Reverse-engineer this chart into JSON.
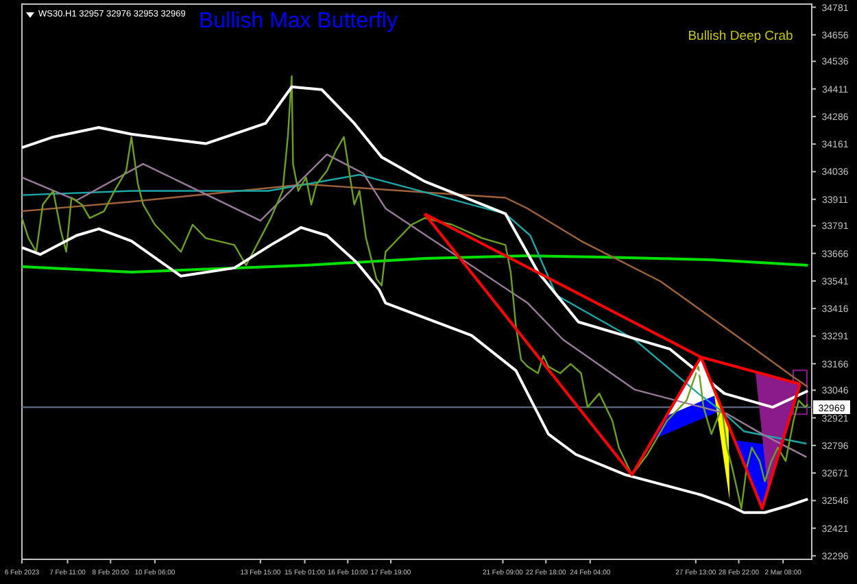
{
  "chart_data": {
    "type": "line",
    "title": "Bullish Max Butterfly",
    "annotations": [
      "WS30.H1  32957 32976 32953 32969",
      "Bullish Deep Crab"
    ],
    "xlim": [
      "2023-02-06T00:00",
      "2023-03-03T06:00"
    ],
    "xticks": [
      {
        "value": "2023-02-06T00:00",
        "label": "6 Feb 2023"
      },
      {
        "value": "2023-02-07T11:00",
        "label": "7 Feb 11:00"
      },
      {
        "value": "2023-02-08T20:00",
        "label": "8 Feb 20:00"
      },
      {
        "value": "2023-02-10T06:00",
        "label": "10 Feb 06:00"
      },
      {
        "value": "2023-02-13T15:00",
        "label": "13 Feb 15:00"
      },
      {
        "value": "2023-02-15T01:00",
        "label": "15 Feb 01:00"
      },
      {
        "value": "2023-02-16T10:00",
        "label": "16 Feb 10:00"
      },
      {
        "value": "2023-02-17T19:00",
        "label": "17 Feb 19:00"
      },
      {
        "value": "2023-02-21T09:00",
        "label": "21 Feb 09:00"
      },
      {
        "value": "2023-02-22T18:00",
        "label": "22 Feb 18:00"
      },
      {
        "value": "2023-02-24T04:00",
        "label": "24 Feb 04:00"
      },
      {
        "value": "2023-02-27T13:00",
        "label": "27 Feb 13:00"
      },
      {
        "value": "2023-02-28T22:00",
        "label": "28 Feb 22:00"
      },
      {
        "value": "2023-03-02T08:00",
        "label": "2 Mar 08:00"
      }
    ],
    "ylim": [
      32280,
      34795
    ],
    "yticks": [
      34781,
      34656,
      34536,
      34411,
      34286,
      34161,
      34036,
      33911,
      33791,
      33666,
      33541,
      33416,
      33291,
      33166,
      33046,
      32921,
      32796,
      32671,
      32546,
      32421,
      32296
    ],
    "grid": false,
    "marker": "none",
    "line_style": "solid",
    "ref_lines": [
      {
        "axis": "y",
        "value": 32969,
        "label": "32969",
        "color": "#5a6878"
      }
    ],
    "series": [
      {
        "color": "#00e000",
        "x": [
          "2023-02-06T00:00",
          "2023-02-09T12:00",
          "2023-02-15T02:00",
          "2023-02-18T21:00",
          "2023-02-22T04:00",
          "2023-02-24T11:00",
          "2023-02-28T01:00",
          "2023-03-03T03:00"
        ],
        "values": [
          33606,
          33581,
          33612,
          33643,
          33655,
          33649,
          33637,
          33612
        ]
      },
      {
        "color": "#a0623a",
        "x": [
          "2023-02-06T00:00",
          "2023-02-09T12:00",
          "2023-02-15T02:00",
          "2023-02-18T05:00",
          "2023-02-21T11:00",
          "2023-02-22T04:00",
          "2023-02-23T21:00",
          "2023-02-26T10:00",
          "2023-02-28T20:00",
          "2023-03-02T15:00",
          "2023-03-03T03:00"
        ],
        "values": [
          33857,
          33900,
          33979,
          33949,
          33918,
          33869,
          33722,
          33539,
          33294,
          33110,
          33061
        ]
      },
      {
        "color": "#1aa8a8",
        "x": [
          "2023-02-06T00:00",
          "2023-02-09T12:00",
          "2023-02-13T21:00",
          "2023-02-16T19:00",
          "2023-02-21T11:00",
          "2023-02-22T06:00",
          "2023-02-23T02:00",
          "2023-02-25T14:00",
          "2023-02-27T15:00",
          "2023-02-28T09:00",
          "2023-03-01T02:00",
          "2023-03-03T02:00"
        ],
        "values": [
          33930,
          33949,
          33949,
          34022,
          33845,
          33747,
          33477,
          33276,
          33031,
          32951,
          32860,
          32804
        ]
      },
      {
        "color": "#9a7a9a",
        "x": [
          "2023-02-06T00:00",
          "2023-02-07T18:00",
          "2023-02-09T21:00",
          "2023-02-13T15:00",
          "2023-02-15T18:00",
          "2023-02-16T22:00",
          "2023-02-17T15:00",
          "2023-02-22T04:00",
          "2023-02-23T07:00",
          "2023-02-25T14:00",
          "2023-02-28T13:00",
          "2023-03-01T16:00",
          "2023-03-03T02:00"
        ],
        "values": [
          34010,
          33906,
          34071,
          33814,
          34114,
          34028,
          33869,
          33441,
          33276,
          33049,
          32939,
          32847,
          32743
        ]
      },
      {
        "color": "#6aa121",
        "x": [
          "2023-02-06T00:00",
          "2023-02-06T05:00",
          "2023-02-06T11:00",
          "2023-02-06T16:00",
          "2023-02-07T00:00",
          "2023-02-07T06:00",
          "2023-02-07T10:00",
          "2023-02-07T14:00",
          "2023-02-07T22:00",
          "2023-02-08T04:00",
          "2023-02-08T15:00",
          "2023-02-08T23:00",
          "2023-02-09T08:00",
          "2023-02-09T12:00",
          "2023-02-09T17:00",
          "2023-02-09T21:00",
          "2023-02-10T06:00",
          "2023-02-11T02:00",
          "2023-02-11T11:00",
          "2023-02-11T21:00",
          "2023-02-12T19:00",
          "2023-02-13T04:00",
          "2023-02-13T15:00",
          "2023-02-13T23:00",
          "2023-02-14T08:00",
          "2023-02-14T12:00",
          "2023-02-14T15:00",
          "2023-02-14T16:00",
          "2023-02-14T20:00",
          "2023-02-15T02:00",
          "2023-02-15T06:00",
          "2023-02-15T10:00",
          "2023-02-15T18:00",
          "2023-02-16T01:00",
          "2023-02-16T07:00",
          "2023-02-16T11:00",
          "2023-02-16T15:00",
          "2023-02-16T19:00",
          "2023-02-17T00:00",
          "2023-02-17T08:00",
          "2023-02-17T12:00",
          "2023-02-17T15:00",
          "2023-02-18T11:00",
          "2023-02-18T21:00",
          "2023-02-19T18:00",
          "2023-02-20T17:00",
          "2023-02-21T11:00",
          "2023-02-21T15:00",
          "2023-02-21T19:00",
          "2023-02-21T23:00",
          "2023-02-22T04:00",
          "2023-02-22T12:00",
          "2023-02-22T16:00",
          "2023-02-22T20:00",
          "2023-02-23T05:00",
          "2023-02-23T13:00",
          "2023-02-23T21:00",
          "2023-02-24T02:00",
          "2023-02-24T11:00",
          "2023-02-24T21:00",
          "2023-02-25T02:00",
          "2023-02-25T12:00",
          "2023-02-26T00:00",
          "2023-02-26T15:00",
          "2023-02-27T06:00",
          "2023-02-27T15:00",
          "2023-02-27T19:00",
          "2023-02-28T01:00",
          "2023-02-28T05:00",
          "2023-02-28T09:00",
          "2023-02-28T13:00",
          "2023-02-28T17:00",
          "2023-03-01T00:00",
          "2023-03-01T04:00",
          "2023-03-01T08:00",
          "2023-03-01T14:00",
          "2023-03-01T18:00",
          "2023-03-01T23:00",
          "2023-03-02T04:00",
          "2023-03-02T10:00",
          "2023-03-02T16:00",
          "2023-03-02T20:00",
          "2023-03-03T01:00",
          "2023-03-03T03:00"
        ],
        "values": [
          33826,
          33735,
          33673,
          33887,
          33949,
          33765,
          33673,
          33918,
          33887,
          33826,
          33857,
          33949,
          34040,
          34193,
          33979,
          33887,
          33796,
          33673,
          33796,
          33735,
          33704,
          33612,
          33735,
          33826,
          33949,
          34193,
          34469,
          34071,
          33949,
          34010,
          33887,
          33979,
          34040,
          34132,
          34193,
          34040,
          33887,
          33949,
          33735,
          33551,
          33520,
          33673,
          33796,
          33826,
          33796,
          33735,
          33704,
          33581,
          33337,
          33184,
          33153,
          33123,
          33202,
          33153,
          33123,
          33165,
          33123,
          32969,
          33031,
          32908,
          32786,
          32663,
          32755,
          32908,
          33000,
          33153,
          32969,
          32847,
          32908,
          32969,
          32786,
          32694,
          32510,
          32694,
          32786,
          32725,
          32633,
          32725,
          32786,
          32725,
          32908,
          33000,
          32969,
          32982
        ]
      },
      {
        "color": "#ffffff",
        "x": [
          "2023-02-06T00:00",
          "2023-02-07T00:00",
          "2023-02-08T11:00",
          "2023-02-09T12:00",
          "2023-02-11T21:00",
          "2023-02-13T19:00",
          "2023-02-14T15:00",
          "2023-02-15T14:00",
          "2023-02-16T15:00",
          "2023-02-17T12:00",
          "2023-02-18T21:00",
          "2023-02-21T11:00",
          "2023-02-22T12:00",
          "2023-02-23T19:00",
          "2023-02-26T17:00",
          "2023-02-28T11:00",
          "2023-03-02T00:00",
          "2023-03-03T03:00"
        ],
        "values": [
          34145,
          34193,
          34236,
          34206,
          34163,
          34255,
          34420,
          34408,
          34255,
          34102,
          33992,
          33845,
          33581,
          33355,
          33233,
          33031,
          32969,
          33043
        ]
      },
      {
        "color": "#ffffff",
        "x": [
          "2023-02-06T00:00",
          "2023-02-06T14:00",
          "2023-02-07T18:00",
          "2023-02-08T11:00",
          "2023-02-09T12:00",
          "2023-02-11T02:00",
          "2023-02-12T19:00",
          "2023-02-13T23:00",
          "2023-02-14T22:00",
          "2023-02-15T18:00",
          "2023-02-16T17:00",
          "2023-02-17T10:00",
          "2023-02-17T15:00",
          "2023-02-20T09:00",
          "2023-02-21T19:00",
          "2023-02-22T04:00",
          "2023-02-22T20:00",
          "2023-02-23T17:00",
          "2023-02-25T07:00",
          "2023-02-27T17:00",
          "2023-02-28T13:00",
          "2023-03-01T02:00",
          "2023-03-01T18:00",
          "2023-03-02T12:00",
          "2023-03-03T03:00"
        ],
        "values": [
          33692,
          33661,
          33747,
          33777,
          33722,
          33563,
          33600,
          33704,
          33783,
          33747,
          33624,
          33502,
          33441,
          33294,
          33135,
          33031,
          32847,
          32755,
          32663,
          32572,
          32529,
          32492,
          32492,
          32523,
          32553
        ]
      },
      {
        "color": "#ff0000",
        "x": [
          "2023-02-18T21:00",
          "2023-02-25T12:00",
          "2023-02-27T17:00",
          "2023-03-01T16:00",
          "2023-03-02T21:00"
        ],
        "values": [
          33845,
          32663,
          33196,
          32510,
          33074
        ]
      },
      {
        "color": "#ff0000",
        "x": [
          "2023-02-18T21:00",
          "2023-02-27T17:00",
          "2023-03-02T21:00"
        ],
        "values": [
          33845,
          33196,
          33074
        ]
      }
    ]
  }
}
